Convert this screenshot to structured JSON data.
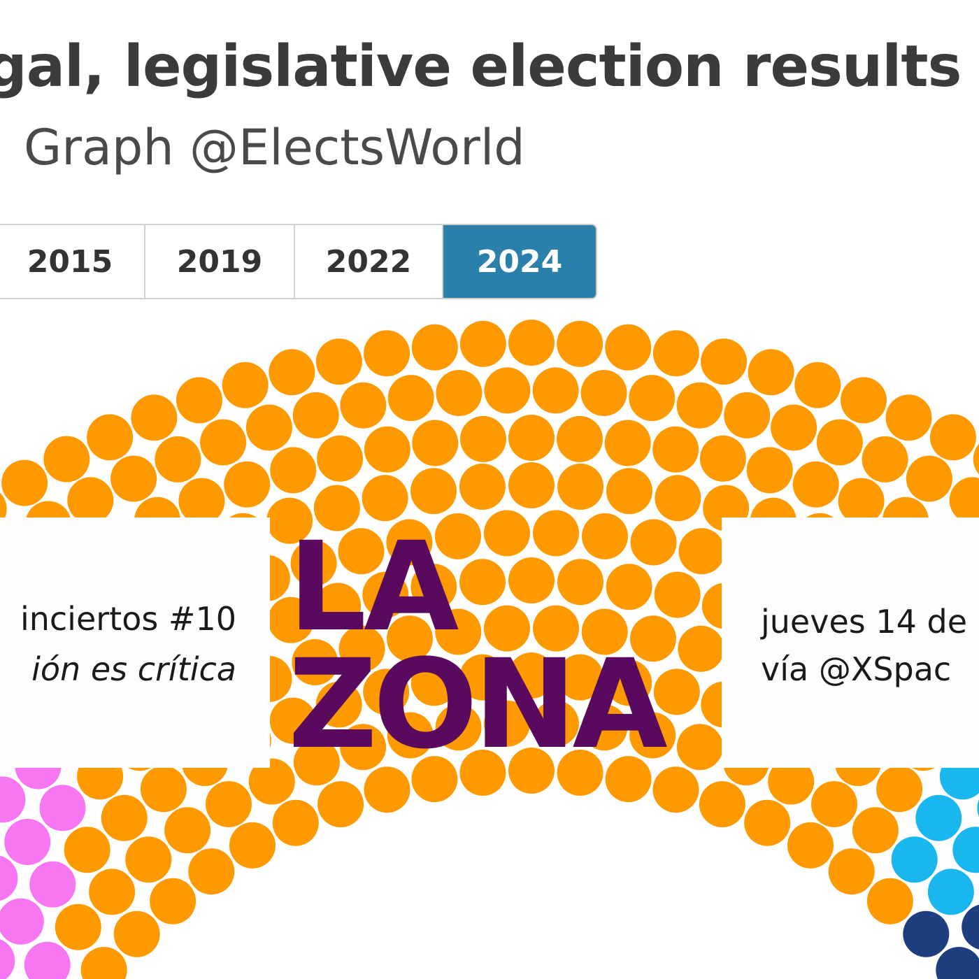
{
  "headline": "gal, legislative election results",
  "credit": "Graph @ElectsWorld",
  "year_tabs": [
    {
      "label": "2015",
      "active": false
    },
    {
      "label": "2019",
      "active": false
    },
    {
      "label": "2022",
      "active": false
    },
    {
      "label": "2024",
      "active": true
    }
  ],
  "colors": {
    "active_tab": "#2a7fab",
    "dot_orange": "#ff9900",
    "dot_pink": "#f777f3",
    "dot_light_blue": "#1ab6ee",
    "dot_navy": "#1e3f7f",
    "logo": "#5a0a5e"
  },
  "banner": {
    "series_title": "inciertos #10",
    "series_subtitle": "ión es crítica",
    "logo_line1": "LA",
    "logo_line2": "ZONA",
    "date_line": "jueves 14 de",
    "via_line": "vía @XSpac"
  }
}
